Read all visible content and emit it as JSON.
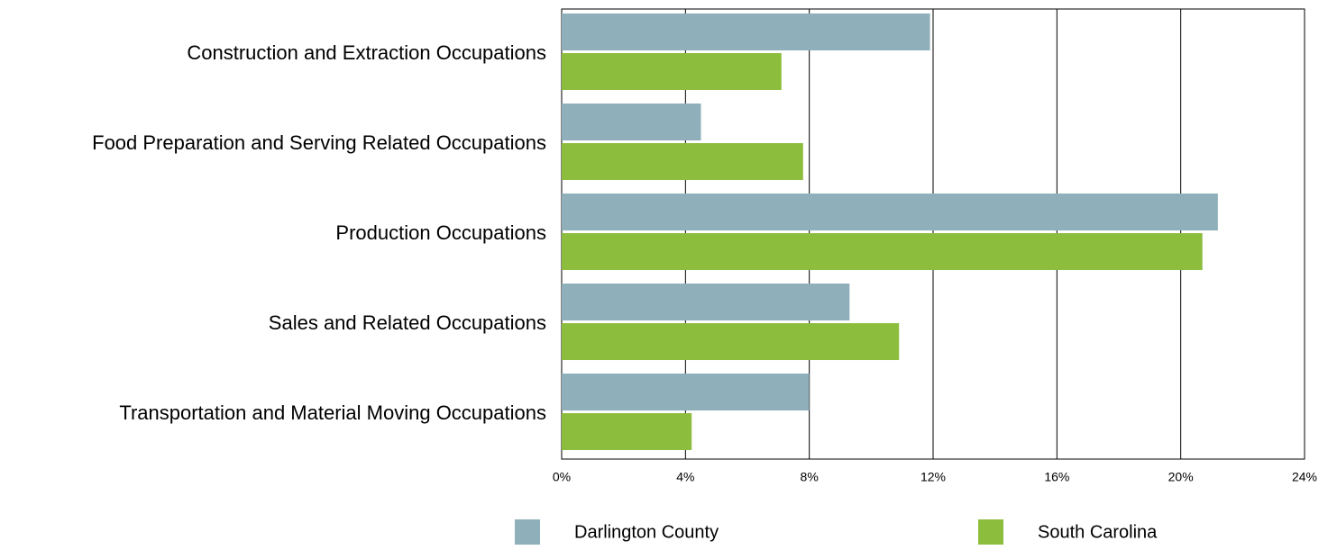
{
  "chart_data": {
    "type": "hbar",
    "categories": [
      "Construction and Extraction Occupations",
      "Food Preparation and Serving Related Occupations",
      "Production Occupations",
      "Sales and Related Occupations",
      "Transportation and Material Moving Occupations"
    ],
    "series": [
      {
        "name": "Darlington County",
        "color": "#8fafba",
        "values": [
          11.9,
          4.5,
          21.2,
          9.3,
          8.0
        ]
      },
      {
        "name": "South Carolina",
        "color": "#8dbd3d",
        "values": [
          7.1,
          7.8,
          20.7,
          10.9,
          4.2
        ]
      }
    ],
    "xlim": [
      0,
      24
    ],
    "xticks": [
      {
        "value": 0,
        "label": "0%"
      },
      {
        "value": 4,
        "label": "4%"
      },
      {
        "value": 8,
        "label": "8%"
      },
      {
        "value": 12,
        "label": "12%"
      },
      {
        "value": 16,
        "label": "16%"
      },
      {
        "value": 20,
        "label": "20%"
      },
      {
        "value": 24,
        "label": "24%"
      }
    ],
    "grid": true
  }
}
